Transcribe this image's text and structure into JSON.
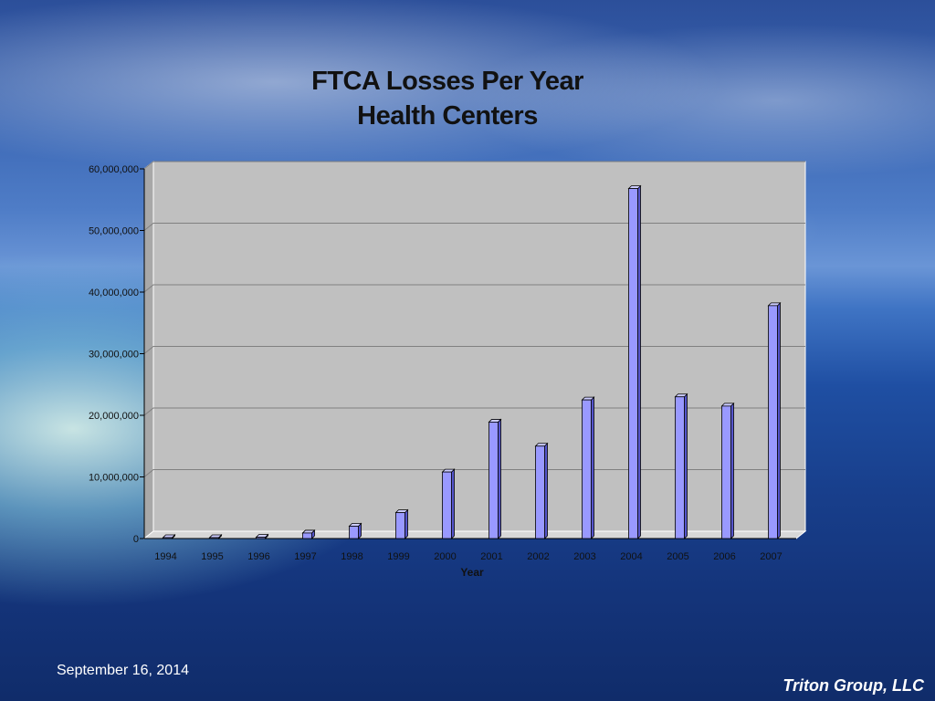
{
  "slide": {
    "title_line1": "FTCA Losses Per Year",
    "title_line2": "Health Centers",
    "footer_date": "September 16, 2014",
    "footer_brand": "Triton Group, LLC"
  },
  "chart_data": {
    "type": "bar",
    "title": "FTCA Losses Per Year Health Centers",
    "xlabel": "Year",
    "ylabel": "",
    "categories": [
      "1994",
      "1995",
      "1996",
      "1997",
      "1998",
      "1999",
      "2000",
      "2001",
      "2002",
      "2003",
      "2004",
      "2005",
      "2006",
      "2007"
    ],
    "values": [
      0,
      0,
      200000,
      900000,
      2000000,
      4200000,
      10800000,
      18900000,
      15000000,
      22500000,
      56800000,
      23000000,
      21500000,
      37800000
    ],
    "ylim": [
      0,
      60000000
    ],
    "yticks": [
      0,
      10000000,
      20000000,
      30000000,
      40000000,
      50000000,
      60000000
    ],
    "ytick_labels": [
      "0",
      "10,000,000",
      "20,000,000",
      "30,000,000",
      "40,000,000",
      "50,000,000",
      "60,000,000"
    ],
    "grid": true,
    "legend": "none",
    "colors": {
      "bar_face": "#9999ff",
      "bar_side": "#5555cc",
      "bar_top": "#ccccff",
      "bar_edge": "#000000",
      "plot_back": "#c0c0c0",
      "plot_wall": "#a8a8a8",
      "gridline": "#808080"
    }
  }
}
